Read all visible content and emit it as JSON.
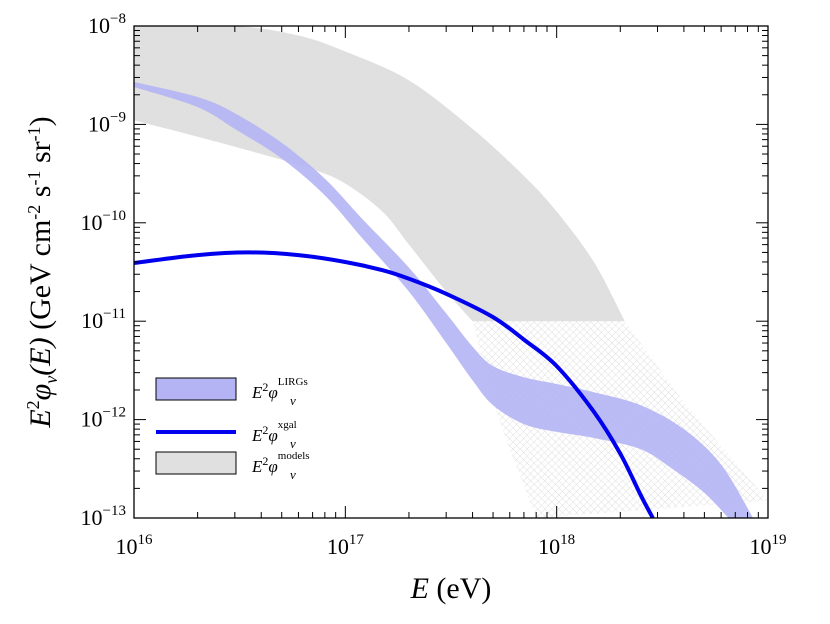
{
  "chart_data": {
    "type": "area",
    "title": "",
    "xscale": "log",
    "yscale": "log",
    "xlim": [
      1e+16,
      1e+19
    ],
    "ylim": [
      1e-13,
      1e-08
    ],
    "xlabel": {
      "symbol": "E",
      "unit": " (eV)"
    },
    "ylabel": {
      "lead": "E",
      "sup": "2",
      "phi": "φ",
      "sub": "ν",
      "arg": "(E)",
      "unit_text": " (GeV cm",
      "u1": "-2",
      "u2": " s",
      "u3": "-1",
      "u4": " sr",
      "u5": "-1",
      "u6": ")"
    },
    "x_ticks": [
      {
        "value": 1e+16,
        "base": "10",
        "exp": "16"
      },
      {
        "value": 1e+17,
        "base": "10",
        "exp": "17"
      },
      {
        "value": 1e+18,
        "base": "10",
        "exp": "18"
      },
      {
        "value": 1e+19,
        "base": "10",
        "exp": "19"
      }
    ],
    "y_ticks": [
      {
        "value": 1e-13,
        "base": "10",
        "exp": "−13"
      },
      {
        "value": 1e-12,
        "base": "10",
        "exp": "−12"
      },
      {
        "value": 1e-11,
        "base": "10",
        "exp": "−11"
      },
      {
        "value": 1e-10,
        "base": "10",
        "exp": "−10"
      },
      {
        "value": 1e-09,
        "base": "10",
        "exp": "−9"
      },
      {
        "value": 1e-08,
        "base": "10",
        "exp": "−8"
      }
    ],
    "series": [
      {
        "name": "models",
        "legend_sup": "models",
        "style": "band",
        "color": "#e0e0e0",
        "upper": [
          [
            1e+16,
            1e-08
          ],
          [
            3e+16,
            1e-08
          ],
          [
            6e+16,
            8e-09
          ],
          [
            1e+17,
            5.5e-09
          ],
          [
            2e+17,
            2.8e-09
          ],
          [
            4e+17,
            9e-10
          ],
          [
            7e+17,
            3e-10
          ],
          [
            1e+18,
            1.3e-10
          ],
          [
            1.5e+18,
            4e-11
          ],
          [
            2.1e+18,
            1e-11
          ]
        ],
        "lower": [
          [
            1e+16,
            1.1e-09
          ],
          [
            2e+16,
            7.5e-10
          ],
          [
            4e+16,
            5e-10
          ],
          [
            7e+16,
            3.5e-10
          ],
          [
            1e+17,
            2.5e-10
          ],
          [
            1.5e+17,
            1.3e-10
          ],
          [
            2e+17,
            6e-11
          ],
          [
            3e+17,
            2e-11
          ],
          [
            4e+17,
            1e-11
          ]
        ],
        "extension_upper": [
          [
            4e+17,
            1e-11
          ],
          [
            2.1e+18,
            1e-11
          ],
          [
            4e+18,
            1.5e-12
          ],
          [
            1e+19,
            1.5e-13
          ]
        ],
        "extension_lower": [
          [
            4e+17,
            1e-11
          ],
          [
            5e+17,
            1.5e-12
          ],
          [
            6e+17,
            5e-13
          ],
          [
            8e+17,
            1e-13
          ]
        ]
      },
      {
        "name": "LIRGs",
        "legend_sup": "LIRGs",
        "style": "band",
        "color": "#b4b4f4",
        "upper": [
          [
            1e+16,
            2.7e-09
          ],
          [
            2e+16,
            1.9e-09
          ],
          [
            3e+16,
            1.3e-09
          ],
          [
            5e+16,
            6.5e-10
          ],
          [
            8e+16,
            2.8e-10
          ],
          [
            1.2e+17,
            1.1e-10
          ],
          [
            2e+17,
            3.5e-11
          ],
          [
            3e+17,
            1.2e-11
          ],
          [
            4e+17,
            5.5e-12
          ],
          [
            5e+17,
            3.5e-12
          ],
          [
            7e+17,
            2.7e-12
          ],
          [
            1e+18,
            2.3e-12
          ],
          [
            1.5e+18,
            1.9e-12
          ],
          [
            2.5e+18,
            1.4e-12
          ],
          [
            4e+18,
            8e-13
          ],
          [
            6e+18,
            3.5e-13
          ],
          [
            8.5e+18,
            1e-13
          ]
        ],
        "lower": [
          [
            1e+16,
            2.4e-09
          ],
          [
            2e+16,
            1.5e-09
          ],
          [
            3e+16,
            9e-10
          ],
          [
            5e+16,
            4.5e-10
          ],
          [
            8e+16,
            1.9e-10
          ],
          [
            1.2e+17,
            7e-11
          ],
          [
            2e+17,
            2e-11
          ],
          [
            3e+17,
            6e-12
          ],
          [
            4e+17,
            2.5e-12
          ],
          [
            5e+17,
            1.4e-12
          ],
          [
            7e+17,
            9e-13
          ],
          [
            1e+18,
            7.5e-13
          ],
          [
            1.5e+18,
            6.5e-13
          ],
          [
            2.5e+18,
            5e-13
          ],
          [
            3.5e+18,
            3.2e-13
          ],
          [
            5e+18,
            1.8e-13
          ],
          [
            6.5e+18,
            1e-13
          ]
        ]
      },
      {
        "name": "xgal",
        "legend_sup": "xgal",
        "style": "line",
        "color": "#0000ee",
        "points": [
          [
            1e+16,
            3.9e-11
          ],
          [
            2e+16,
            4.7e-11
          ],
          [
            3.5e+16,
            5e-11
          ],
          [
            6e+16,
            4.7e-11
          ],
          [
            1e+17,
            4e-11
          ],
          [
            1.5e+17,
            3.3e-11
          ],
          [
            2e+17,
            2.7e-11
          ],
          [
            3e+17,
            1.9e-11
          ],
          [
            5e+17,
            1.1e-11
          ],
          [
            7e+17,
            6.5e-12
          ],
          [
            1e+18,
            3.5e-12
          ],
          [
            1.5e+18,
            1.2e-12
          ],
          [
            2e+18,
            4.5e-13
          ],
          [
            2.5e+18,
            1.7e-13
          ],
          [
            2.85e+18,
            1e-13
          ]
        ]
      }
    ],
    "legend": {
      "placement": "lower-left",
      "entries": [
        {
          "series": "LIRGs",
          "label_sup": "LIRGs"
        },
        {
          "series": "xgal",
          "label_sup": "xgal"
        },
        {
          "series": "models",
          "label_sup": "models"
        }
      ],
      "label_base": "E",
      "label_pow": "2",
      "label_phi": "φ",
      "label_sub": "ν"
    }
  }
}
